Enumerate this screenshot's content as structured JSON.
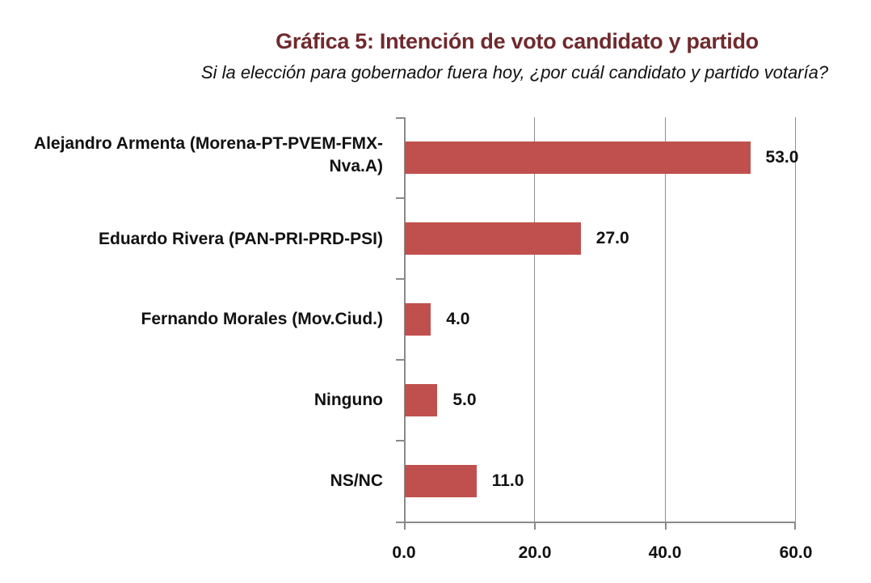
{
  "header": {
    "title": "Gráfica 5: Intención de voto candidato y partido",
    "subtitle": "Si  la elección para gobernador fuera hoy, ¿por cuál candidato y partido votaría?"
  },
  "colors": {
    "bar": "#c0504d",
    "title": "#6f2a2e",
    "grid": "#8f8f8f"
  },
  "chart_data": {
    "type": "bar",
    "orientation": "horizontal",
    "title": "Gráfica 5: Intención de voto candidato y partido",
    "subtitle": "Si  la elección para gobernador fuera hoy, ¿por cuál candidato y partido votaría?",
    "categories": [
      "Alejandro Armenta (Morena-PT-PVEM-FMX-Nva.A)",
      "Eduardo Rivera (PAN-PRI-PRD-PSI)",
      "Fernando Morales (Mov.Ciud.)",
      "Ninguno",
      "NS/NC"
    ],
    "values": [
      53.0,
      27.0,
      4.0,
      5.0,
      11.0
    ],
    "value_labels": [
      "53.0",
      "27.0",
      "4.0",
      "5.0",
      "11.0"
    ],
    "xlabel": "",
    "ylabel": "",
    "xlim": [
      0,
      60
    ],
    "xticks": [
      "0.0",
      "20.0",
      "40.0",
      "60.0"
    ],
    "grid": true,
    "legend": null
  }
}
